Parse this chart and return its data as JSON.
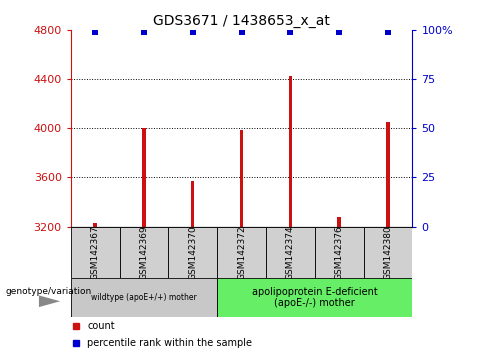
{
  "title": "GDS3671 / 1438653_x_at",
  "samples": [
    "GSM142367",
    "GSM142369",
    "GSM142370",
    "GSM142372",
    "GSM142374",
    "GSM142376",
    "GSM142380"
  ],
  "counts": [
    3230,
    4000,
    3570,
    3990,
    4430,
    3280,
    4050
  ],
  "percentile_ranks": [
    99,
    99,
    99,
    99,
    99,
    99,
    99
  ],
  "ylim_left": [
    3200,
    4800
  ],
  "ylim_right": [
    0,
    100
  ],
  "yticks_left": [
    3200,
    3600,
    4000,
    4400,
    4800
  ],
  "yticks_right": [
    0,
    25,
    50,
    75,
    100
  ],
  "grid_lines": [
    3600,
    4000,
    4400
  ],
  "bar_color": "#CC1111",
  "dot_color": "#0000CC",
  "sample_box_color": "#d0d0d0",
  "group1_color": "#c8c8c8",
  "group2_color": "#66EE66",
  "group1_label": "wildtype (apoE+/+) mother",
  "group2_label": "apolipoprotein E-deficient\n(apoE-/-) mother",
  "group1_count": 3,
  "group2_count": 4,
  "genotype_label": "genotype/variation",
  "legend_count_label": "count",
  "legend_pct_label": "percentile rank within the sample",
  "xlabel_color": "#CC1111",
  "right_axis_color": "#0000CC",
  "bar_width": 0.07,
  "dot_size": 5
}
